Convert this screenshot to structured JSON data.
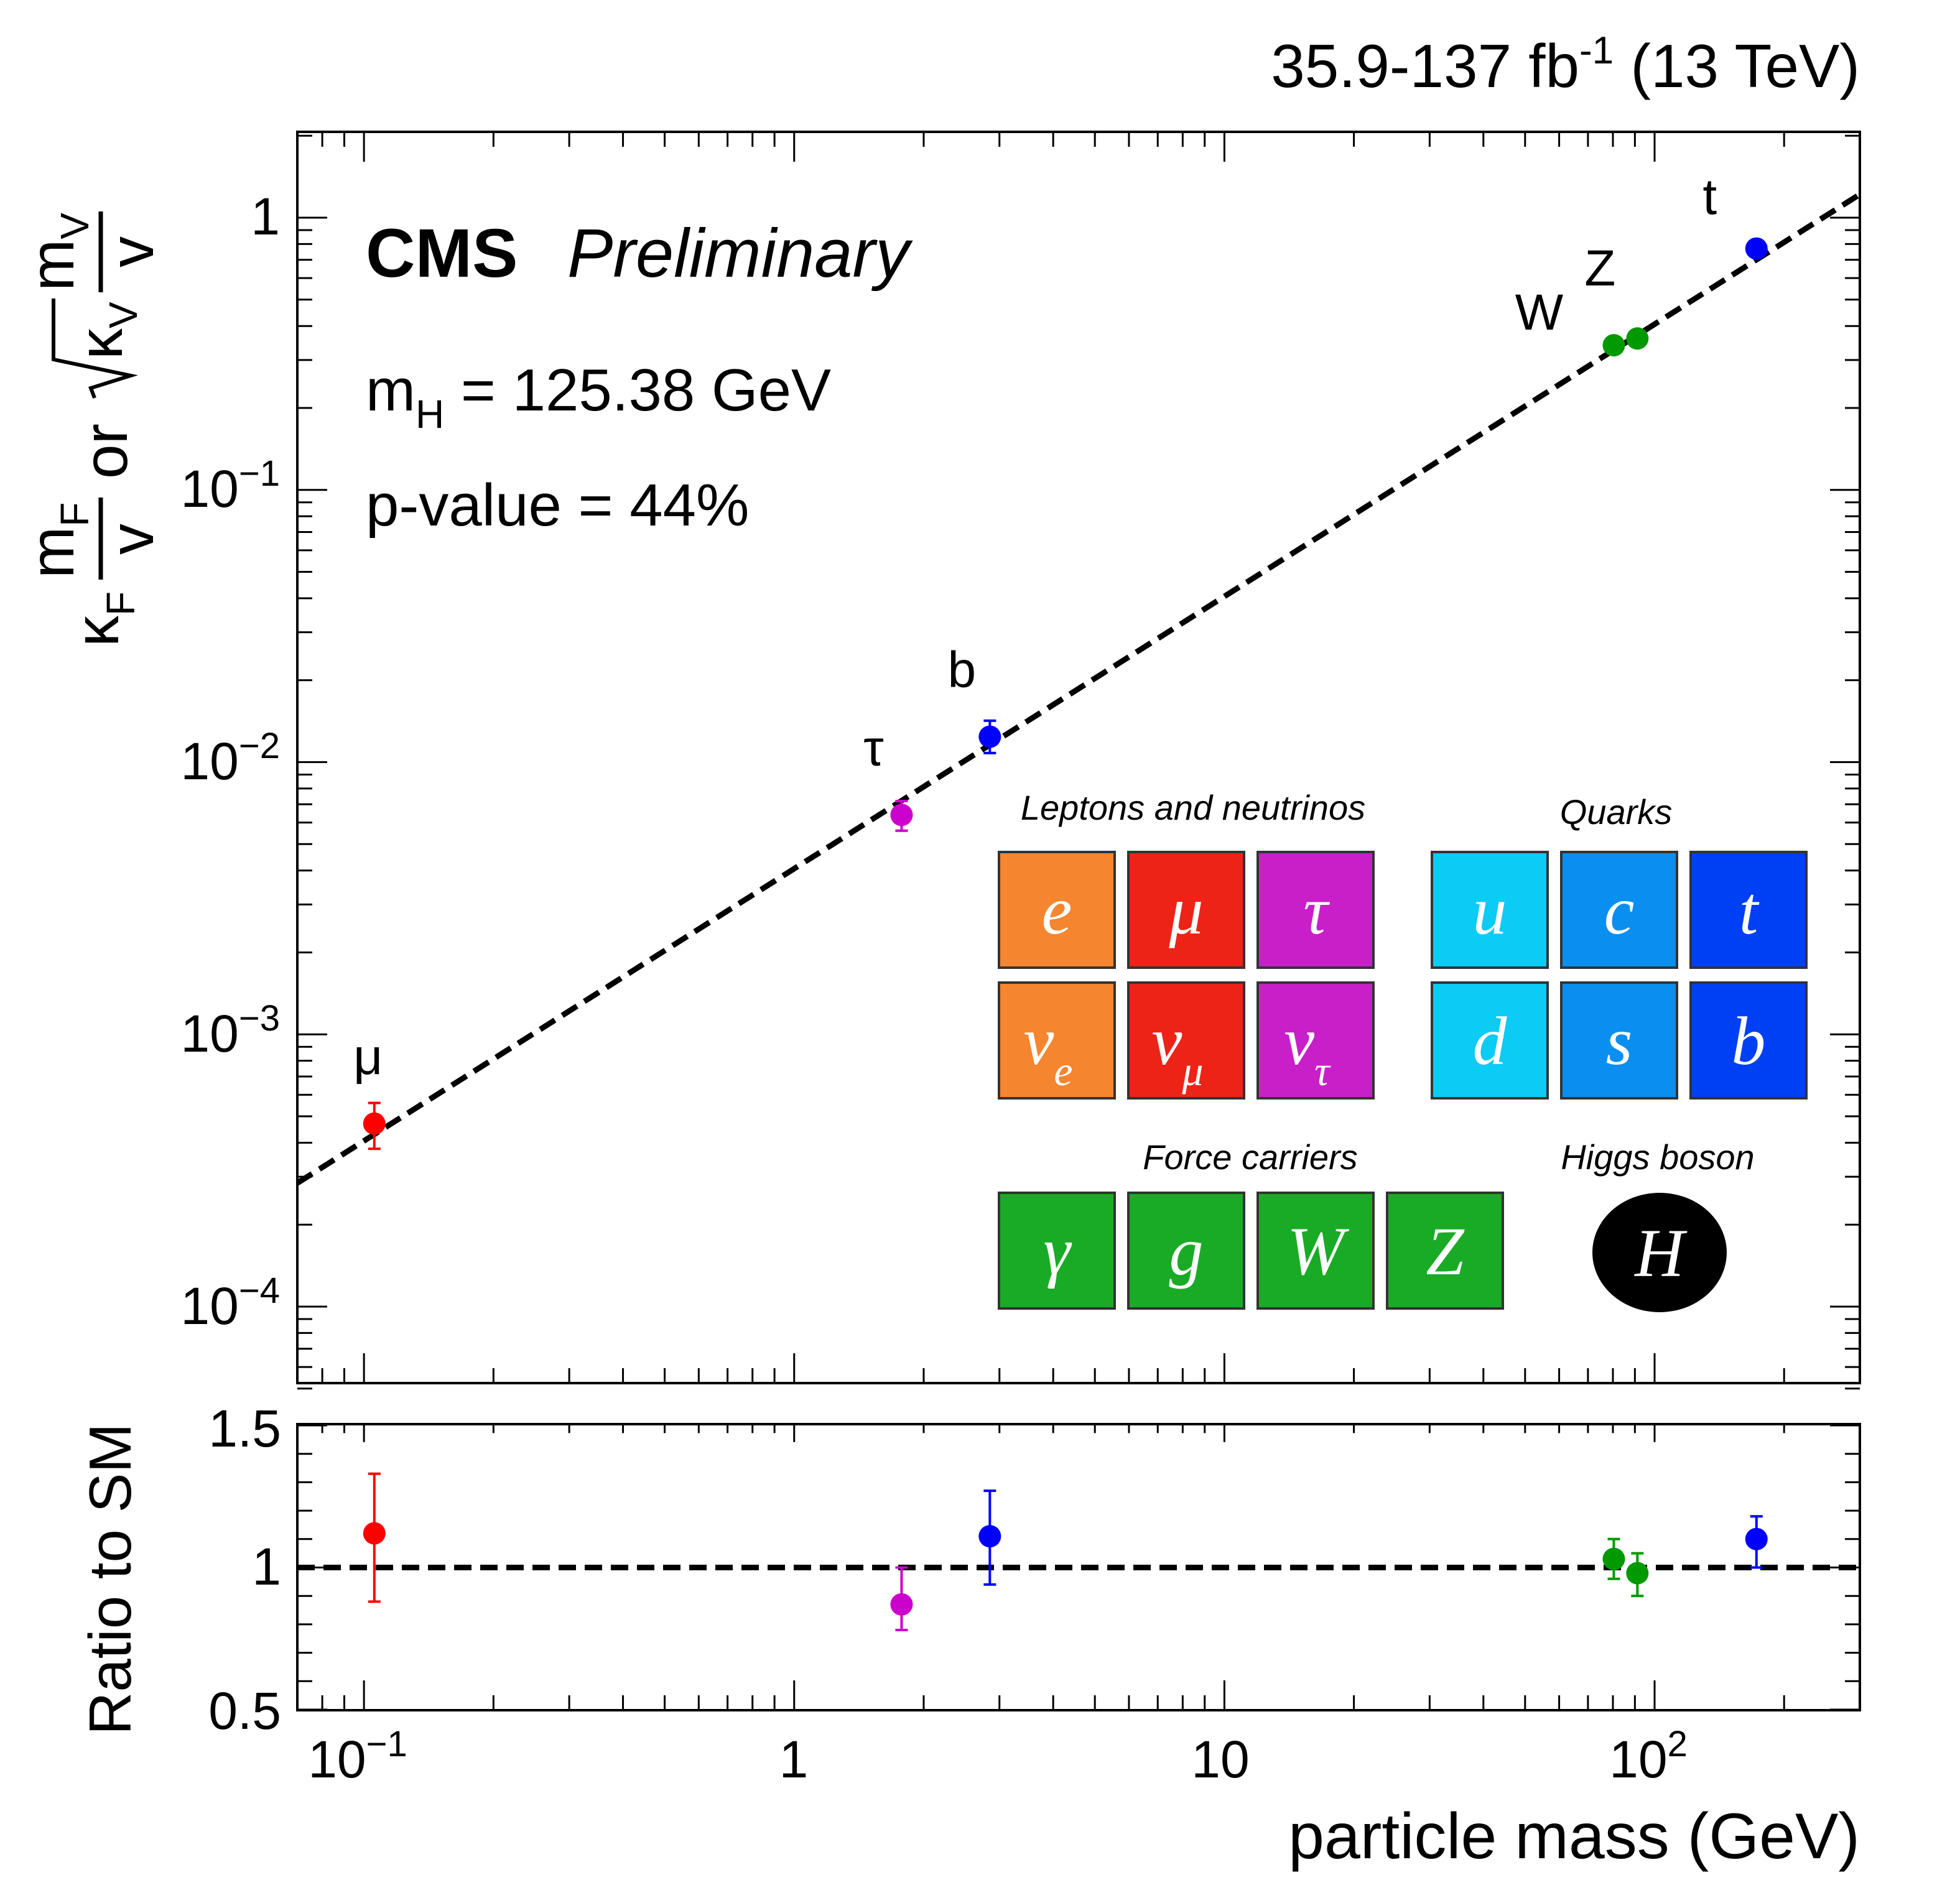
{
  "header": {
    "lumi_main": "35.9-137 fb",
    "lumi_sup": "-1",
    "lumi_tail": " (13 TeV)"
  },
  "labels": {
    "cms": "CMS",
    "preliminary": "Preliminary",
    "mh_m": "m",
    "mh_sub": "H",
    "mh_val": " = 125.38 GeV",
    "pvalue": "p-value = 44%"
  },
  "axes": {
    "ylabel_top": {
      "kappa": "κ",
      "kappa_sub": "F",
      "frac_num": "m",
      "frac_num_sub": "F",
      "frac_den": "v",
      "or": "or",
      "sqrt_kappa": "κ",
      "sqrt_kappa_sub": "V",
      "frac2_num": "m",
      "frac2_num_sub": "V",
      "frac2_den": "v"
    },
    "ylabel_bottom": "Ratio to SM",
    "xlabel": "particle mass (GeV)",
    "top_yticks": [
      {
        "label": "1",
        "exp": ""
      },
      {
        "label": "10",
        "exp": "−1"
      },
      {
        "label": "10",
        "exp": "−2"
      },
      {
        "label": "10",
        "exp": "−3"
      },
      {
        "label": "10",
        "exp": "−4"
      }
    ],
    "bottom_yticks": [
      "1.5",
      "1",
      "0.5"
    ],
    "xticks": [
      {
        "label": "10",
        "exp": "−1"
      },
      {
        "label": "1",
        "exp": ""
      },
      {
        "label": "10",
        "exp": ""
      },
      {
        "label": "10",
        "exp": "2"
      }
    ]
  },
  "particles": {
    "legend_titles": {
      "leptons": "Leptons and neutrinos",
      "quarks": "Quarks",
      "force": "Force carriers",
      "higgs": "Higgs boson"
    },
    "leptons": [
      {
        "sym": "e",
        "sub": "",
        "color": "#f5852f"
      },
      {
        "sym": "μ",
        "sub": "",
        "color": "#ee2317"
      },
      {
        "sym": "τ",
        "sub": "",
        "color": "#c81fc9"
      },
      {
        "sym": "ν",
        "sub": "e",
        "color": "#f5852f"
      },
      {
        "sym": "ν",
        "sub": "μ",
        "color": "#ee2317"
      },
      {
        "sym": "ν",
        "sub": "τ",
        "color": "#c81fc9"
      }
    ],
    "quarks": [
      {
        "sym": "u",
        "color": "#0ccbf4"
      },
      {
        "sym": "c",
        "color": "#0a8ff0"
      },
      {
        "sym": "t",
        "color": "#0040f4"
      },
      {
        "sym": "d",
        "color": "#0ccbf4"
      },
      {
        "sym": "s",
        "color": "#0a8ff0"
      },
      {
        "sym": "b",
        "color": "#0040f4"
      }
    ],
    "force": [
      {
        "sym": "γ",
        "color": "#1aab26"
      },
      {
        "sym": "g",
        "color": "#1aab26"
      },
      {
        "sym": "W",
        "color": "#1aab26"
      },
      {
        "sym": "Z",
        "color": "#1aab26"
      }
    ],
    "higgs": {
      "sym": "H",
      "color": "#000000"
    }
  },
  "chart_data": [
    {
      "type": "scatter",
      "panel": "top",
      "xscale": "log",
      "yscale": "log",
      "xlim": [
        0.07,
        300
      ],
      "ylim": [
        5e-05,
        2
      ],
      "grid": false,
      "points": [
        {
          "name": "μ",
          "x": 0.1057,
          "y": 0.00047,
          "ylo": 0.00038,
          "yhi": 0.00056,
          "color": "#ff0000"
        },
        {
          "name": "τ",
          "x": 1.777,
          "y": 0.0064,
          "ylo": 0.0056,
          "yhi": 0.0072,
          "color": "#cc00cc"
        },
        {
          "name": "b",
          "x": 2.85,
          "y": 0.0124,
          "ylo": 0.0108,
          "yhi": 0.0142,
          "color": "#0000ff"
        },
        {
          "name": "W",
          "x": 80.4,
          "y": 0.34,
          "ylo": 0.33,
          "yhi": 0.35,
          "color": "#009900"
        },
        {
          "name": "Z",
          "x": 91.2,
          "y": 0.36,
          "ylo": 0.35,
          "yhi": 0.37,
          "color": "#009900"
        },
        {
          "name": "t",
          "x": 172.5,
          "y": 0.77,
          "ylo": 0.73,
          "yhi": 0.81,
          "color": "#0000ff"
        }
      ],
      "reference_line": {
        "style": "dashed",
        "note": "SM expectation y = m / v"
      }
    },
    {
      "type": "scatter",
      "panel": "bottom",
      "xscale": "log",
      "xlim": [
        0.07,
        300
      ],
      "ylim": [
        0.5,
        1.5
      ],
      "grid": false,
      "points": [
        {
          "x": 0.1057,
          "y": 1.12,
          "ylo": 0.88,
          "yhi": 1.33,
          "color": "#ff0000"
        },
        {
          "x": 1.777,
          "y": 0.87,
          "ylo": 0.78,
          "yhi": 1.0,
          "color": "#cc00cc"
        },
        {
          "x": 2.85,
          "y": 1.11,
          "ylo": 0.94,
          "yhi": 1.27,
          "color": "#0000ff"
        },
        {
          "x": 80.4,
          "y": 1.03,
          "ylo": 0.96,
          "yhi": 1.1,
          "color": "#009900"
        },
        {
          "x": 91.2,
          "y": 0.98,
          "ylo": 0.9,
          "yhi": 1.05,
          "color": "#009900"
        },
        {
          "x": 172.5,
          "y": 1.1,
          "ylo": 1.0,
          "yhi": 1.18,
          "color": "#0000ff"
        }
      ],
      "reference_line": {
        "y": 1,
        "style": "dashed"
      }
    }
  ]
}
